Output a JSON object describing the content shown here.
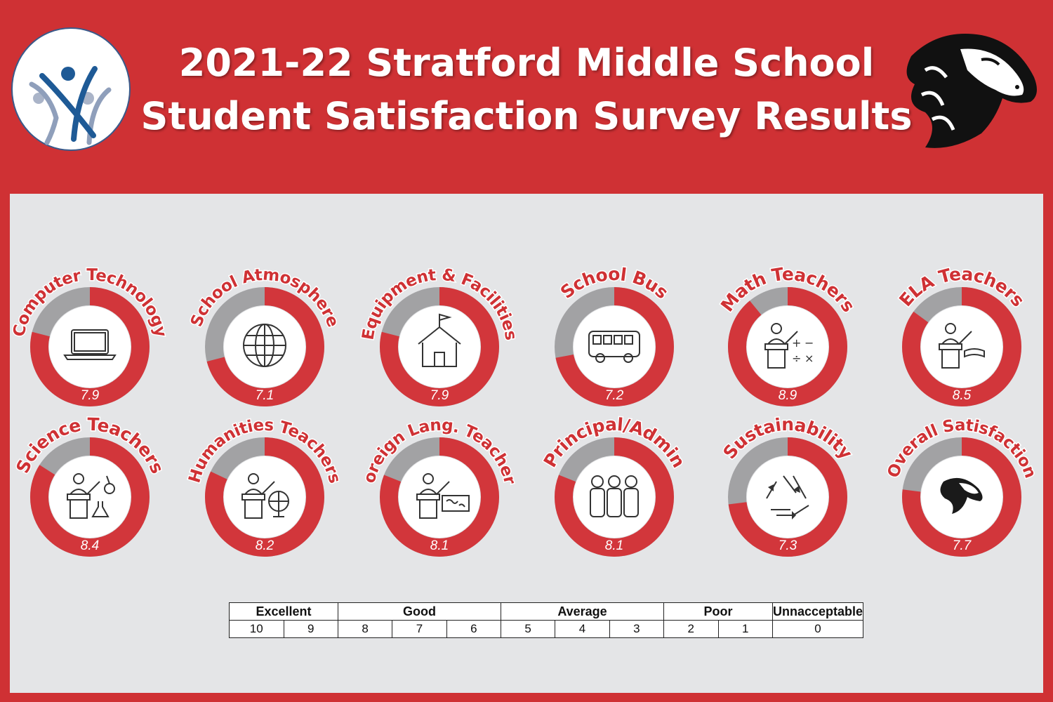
{
  "header": {
    "title_line1": "2021-22 Stratford Middle School",
    "title_line2": "Student Satisfaction Survey Results"
  },
  "colors": {
    "background": "#cf3134",
    "panel": "#e4e5e7",
    "ring_fill": "#d2363b",
    "ring_remainder": "#a2a2a4",
    "label": "#cf3134"
  },
  "chart_data": {
    "type": "donut",
    "scale_max": 10,
    "items": [
      {
        "label": "Computer Technology",
        "value": 7.9,
        "icon": "laptop-icon"
      },
      {
        "label": "School Atmosphere",
        "value": 7.1,
        "icon": "globe-icon"
      },
      {
        "label": "Equipment & Facilities",
        "value": 7.9,
        "icon": "schoolhouse-icon"
      },
      {
        "label": "School Bus",
        "value": 7.2,
        "icon": "bus-icon"
      },
      {
        "label": "Math Teachers",
        "value": 8.9,
        "icon": "math-teacher-icon"
      },
      {
        "label": "ELA Teachers",
        "value": 8.5,
        "icon": "book-teacher-icon"
      },
      {
        "label": "Science Teachers",
        "value": 8.4,
        "icon": "science-teacher-icon"
      },
      {
        "label": "Humanities Teachers",
        "value": 8.2,
        "icon": "globe-teacher-icon"
      },
      {
        "label": "Foreign Lang. Teachers",
        "value": 8.1,
        "icon": "map-teacher-icon"
      },
      {
        "label": "Principal/Admin",
        "value": 8.1,
        "icon": "people-icon"
      },
      {
        "label": "Sustainability",
        "value": 7.3,
        "icon": "recycle-icon"
      },
      {
        "label": "Overall Satisfaction",
        "value": 7.7,
        "icon": "mustang-icon"
      }
    ]
  },
  "rating_scale": {
    "categories": [
      "Excellent",
      "Good",
      "Average",
      "Poor",
      "Unnacceptable"
    ],
    "numbers": [
      "10",
      "9",
      "8",
      "7",
      "6",
      "5",
      "4",
      "3",
      "2",
      "1",
      "0"
    ]
  }
}
